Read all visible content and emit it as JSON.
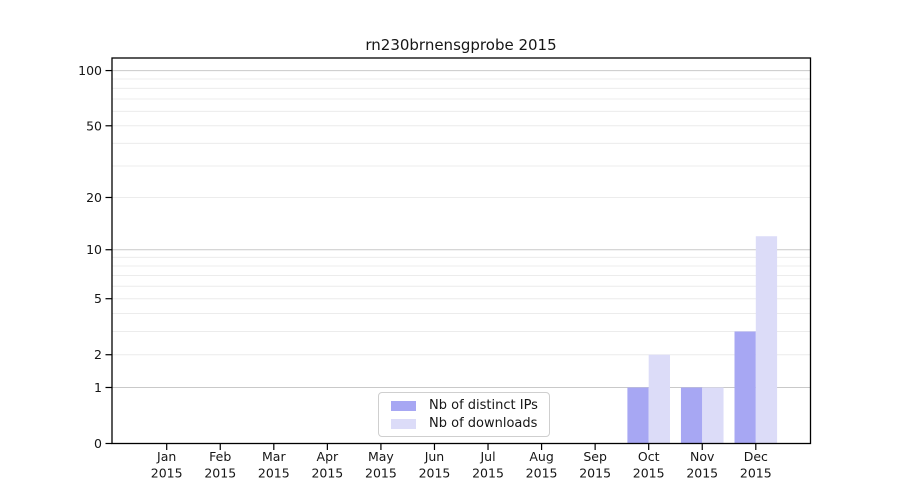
{
  "chart_data": {
    "type": "bar",
    "title": "rn230brnensgprobe 2015",
    "xlabel": "",
    "ylabel": "",
    "categories": [
      "Jan 2015",
      "Feb 2015",
      "Mar 2015",
      "Apr 2015",
      "May 2015",
      "Jun 2015",
      "Jul 2015",
      "Aug 2015",
      "Sep 2015",
      "Oct 2015",
      "Nov 2015",
      "Dec 2015"
    ],
    "series": [
      {
        "name": "Nb of distinct IPs",
        "color": "#a7a7f3",
        "values": [
          0,
          0,
          0,
          0,
          0,
          0,
          0,
          0,
          0,
          1,
          1,
          3
        ]
      },
      {
        "name": "Nb of downloads",
        "color": "#dcdcf8",
        "values": [
          0,
          0,
          0,
          0,
          0,
          0,
          0,
          0,
          0,
          2,
          1,
          12
        ]
      }
    ],
    "y_scale": "symlog-like (position proportional to log10(1+value))",
    "y_ticks": [
      0,
      1,
      2,
      5,
      10,
      20,
      50,
      100
    ],
    "ylim": [
      0,
      117
    ],
    "y_gridlines_major": [
      1,
      10,
      100
    ],
    "y_gridlines_minor": [
      2,
      3,
      4,
      5,
      6,
      7,
      8,
      9,
      20,
      30,
      40,
      50,
      60,
      70,
      80,
      90
    ],
    "grid": true,
    "legend_position": "lower center"
  }
}
